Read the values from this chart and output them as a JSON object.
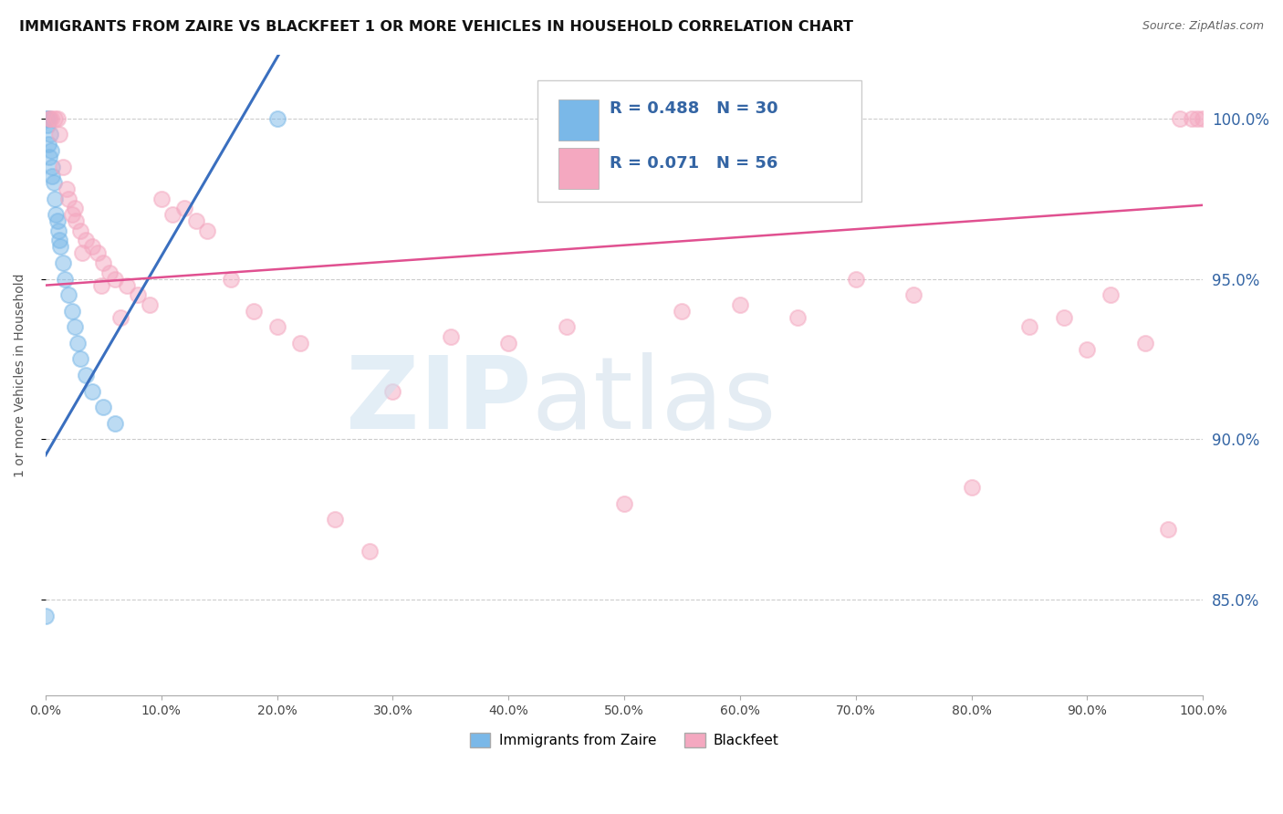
{
  "title": "IMMIGRANTS FROM ZAIRE VS BLACKFEET 1 OR MORE VEHICLES IN HOUSEHOLD CORRELATION CHART",
  "source": "Source: ZipAtlas.com",
  "ylabel": "1 or more Vehicles in Household",
  "x_tick_labels": [
    "0.0%",
    "10.0%",
    "20.0%",
    "30.0%",
    "40.0%",
    "50.0%",
    "60.0%",
    "70.0%",
    "80.0%",
    "90.0%",
    "100.0%"
  ],
  "x_tick_vals": [
    0,
    10,
    20,
    30,
    40,
    50,
    60,
    70,
    80,
    90,
    100
  ],
  "y_tick_labels": [
    "85.0%",
    "90.0%",
    "95.0%",
    "100.0%"
  ],
  "y_tick_vals": [
    85,
    90,
    95,
    100
  ],
  "xlim": [
    0,
    100
  ],
  "ylim": [
    82,
    102
  ],
  "legend_blue_color": "#7ab8e8",
  "legend_pink_color": "#f4a8c0",
  "trend_blue_color": "#3a6fbf",
  "trend_pink_color": "#e05090",
  "dot_blue_color": "#7ab8e8",
  "dot_pink_color": "#f4a8c0",
  "blue_r": "0.488",
  "blue_n": "30",
  "pink_r": "0.071",
  "pink_n": "56",
  "legend_text_color": "#3465a4",
  "blue_dots_x": [
    0.1,
    0.2,
    0.3,
    0.4,
    0.5,
    0.6,
    0.7,
    0.8,
    0.9,
    1.0,
    1.1,
    1.2,
    1.3,
    1.5,
    1.7,
    2.0,
    2.3,
    2.5,
    2.8,
    3.0,
    3.5,
    4.0,
    5.0,
    6.0,
    0.15,
    0.25,
    0.35,
    0.55,
    20.0,
    0.05
  ],
  "blue_dots_y": [
    100.0,
    100.0,
    100.0,
    99.5,
    99.0,
    98.5,
    98.0,
    97.5,
    97.0,
    96.8,
    96.5,
    96.2,
    96.0,
    95.5,
    95.0,
    94.5,
    94.0,
    93.5,
    93.0,
    92.5,
    92.0,
    91.5,
    91.0,
    90.5,
    99.8,
    99.2,
    98.8,
    98.2,
    100.0,
    84.5
  ],
  "pink_dots_x": [
    0.3,
    0.5,
    0.8,
    1.0,
    1.2,
    1.5,
    1.8,
    2.0,
    2.3,
    2.6,
    3.0,
    3.5,
    4.0,
    4.5,
    5.0,
    5.5,
    6.0,
    7.0,
    8.0,
    9.0,
    10.0,
    11.0,
    12.0,
    13.0,
    14.0,
    16.0,
    18.0,
    20.0,
    22.0,
    25.0,
    28.0,
    30.0,
    35.0,
    40.0,
    45.0,
    50.0,
    55.0,
    60.0,
    65.0,
    70.0,
    75.0,
    80.0,
    85.0,
    88.0,
    90.0,
    92.0,
    95.0,
    97.0,
    98.0,
    99.0,
    99.5,
    100.0,
    2.5,
    3.2,
    4.8,
    6.5
  ],
  "pink_dots_y": [
    100.0,
    100.0,
    100.0,
    100.0,
    99.5,
    98.5,
    97.8,
    97.5,
    97.0,
    96.8,
    96.5,
    96.2,
    96.0,
    95.8,
    95.5,
    95.2,
    95.0,
    94.8,
    94.5,
    94.2,
    97.5,
    97.0,
    97.2,
    96.8,
    96.5,
    95.0,
    94.0,
    93.5,
    93.0,
    87.5,
    86.5,
    91.5,
    93.2,
    93.0,
    93.5,
    88.0,
    94.0,
    94.2,
    93.8,
    95.0,
    94.5,
    88.5,
    93.5,
    93.8,
    92.8,
    94.5,
    93.0,
    87.2,
    100.0,
    100.0,
    100.0,
    100.0,
    97.2,
    95.8,
    94.8,
    93.8
  ],
  "blue_trend_x": [
    0,
    25
  ],
  "blue_trend_slope": 0.62,
  "blue_trend_intercept": 89.5,
  "pink_trend_x": [
    0,
    100
  ],
  "pink_trend_slope": 0.025,
  "pink_trend_intercept": 94.8
}
